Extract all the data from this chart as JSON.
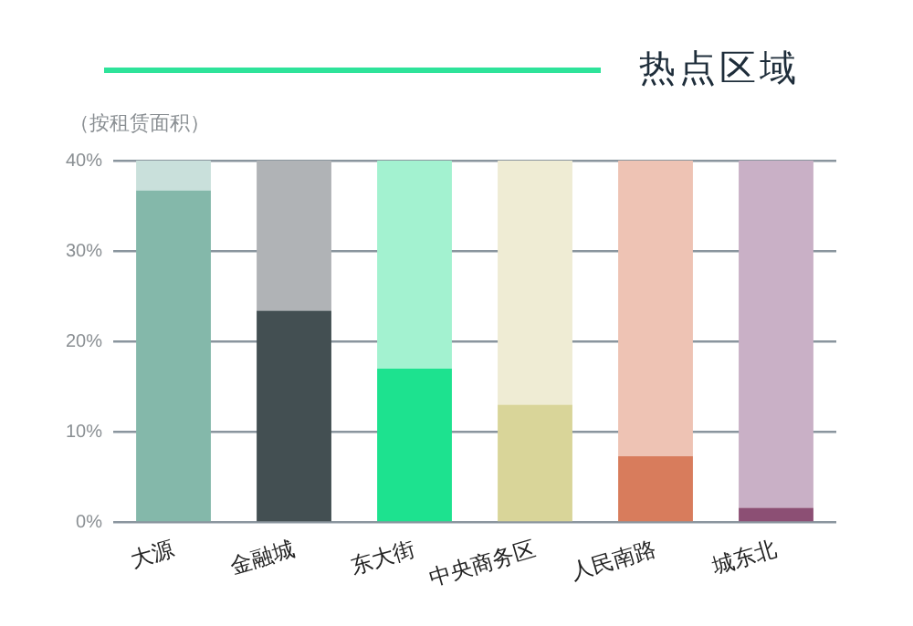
{
  "chart_data": {
    "type": "bar",
    "title": "热点区域",
    "subtitle": "（按租赁面积）",
    "categories": [
      "大源",
      "金融城",
      "东大街",
      "中央商务区",
      "人民南路",
      "城东北"
    ],
    "stacked": true,
    "series": [
      {
        "colors": [
          "#84b8aa",
          "#434f52",
          "#1de28f",
          "#d9d599",
          "#d87c5c",
          "#8c4f74"
        ],
        "values": [
          36.7,
          23.4,
          17.0,
          13.0,
          7.3,
          1.6
        ]
      },
      {
        "colors": [
          "#c9e0db",
          "#b0b3b6",
          "#a3f2d0",
          "#efecd4",
          "#eec3b4",
          "#c9b0c6"
        ],
        "values": [
          3.3,
          16.6,
          23.0,
          27.0,
          32.7,
          38.4
        ]
      }
    ],
    "ylim": [
      0,
      40
    ],
    "yticks": [
      {
        "value": 0,
        "label": "0%"
      },
      {
        "value": 10,
        "label": "10%"
      },
      {
        "value": 20,
        "label": "20%"
      },
      {
        "value": 30,
        "label": "30%"
      },
      {
        "value": 40,
        "label": "40%"
      }
    ],
    "grid": "y",
    "legend": false
  }
}
